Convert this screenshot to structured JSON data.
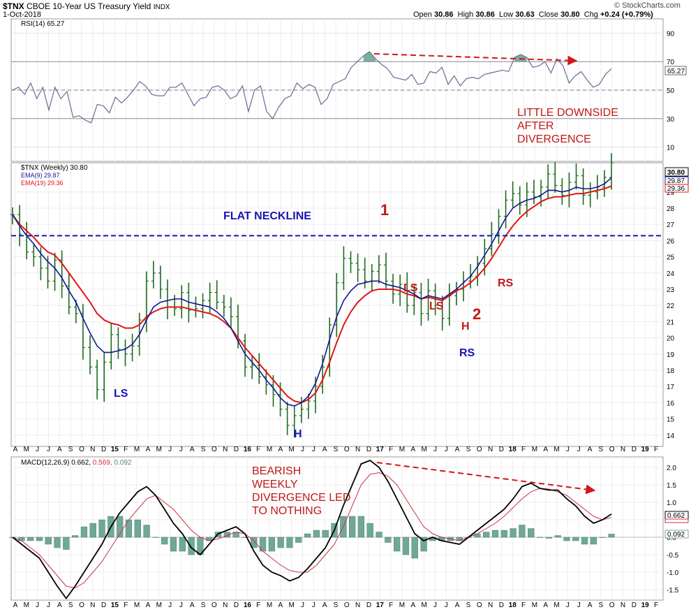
{
  "header": {
    "symbol": "$TNX",
    "name": "CBOE 10-Year US Treasury Yield",
    "exchange": "INDX",
    "date": "1-Oct-2018",
    "watermark": "© StockCharts.com",
    "open_label": "Open",
    "open": "30.86",
    "high_label": "High",
    "high": "30.86",
    "low_label": "Low",
    "low": "30.63",
    "close_label": "Close",
    "close": "30.80",
    "chg_label": "Chg",
    "chg": "+0.24 (+0.79%)"
  },
  "rsi_panel": {
    "legend": "RSI(14) 65.27",
    "value_tag": "65.27",
    "ticks": [
      90,
      70,
      50,
      30,
      10
    ],
    "annotation": "LITTLE DOWNSIDE\nAFTER\nDIVERGENCE"
  },
  "price_panel": {
    "legend_main": "$TNX (Weekly) 30.80",
    "legend_ema9": "EMA(9) 29.87",
    "legend_ema19": "EMA(19) 29.36",
    "tag_close": "30.80",
    "tag_ema9": "29.87",
    "tag_ema19": "29.36",
    "neckline_label": "FLAT NECKLINE",
    "ticks": [
      29,
      28,
      27,
      26,
      25,
      24,
      23,
      22,
      21,
      20,
      19,
      18,
      17,
      16,
      15,
      14
    ],
    "annotations": {
      "ls1": "LS",
      "h1": "H",
      "one": "1",
      "ls2": "LS",
      "ls3": "LS",
      "h2": "H",
      "two": "2",
      "rs_blue": "RS",
      "rs_red": "RS"
    }
  },
  "macd_panel": {
    "legend_name": "MACD(12,26,9)",
    "legend_macd": "0.662,",
    "legend_signal": "0.569,",
    "legend_hist": "0.092",
    "tag_macd": "0.662",
    "tag_hist": "0.092",
    "ticks": [
      "2.0",
      "1.5",
      "1.0",
      "0.5",
      "0.0",
      "-0.5",
      "-1.0",
      "-1.5"
    ],
    "annotation": "BEARISH\nWEEKLY\nDIVERGENCE LED\nTO NOTHING"
  },
  "time_axis": {
    "labels": [
      "A",
      "M",
      "J",
      "J",
      "A",
      "S",
      "O",
      "N",
      "D",
      "15",
      "F",
      "M",
      "A",
      "M",
      "J",
      "J",
      "A",
      "S",
      "O",
      "N",
      "D",
      "16",
      "F",
      "M",
      "A",
      "M",
      "J",
      "J",
      "A",
      "S",
      "O",
      "N",
      "D",
      "17",
      "F",
      "M",
      "A",
      "M",
      "J",
      "J",
      "A",
      "S",
      "O",
      "N",
      "D",
      "18",
      "F",
      "M",
      "A",
      "M",
      "J",
      "J",
      "A",
      "S",
      "O",
      "N",
      "D",
      "19",
      "F"
    ]
  },
  "colors": {
    "price_bars": "#1d6b1d",
    "ema9": "#15159a",
    "ema19": "#e01515",
    "rsi_line": "#6a6a96",
    "rsi_fill": "#5f9a86",
    "macd_line": "#000000",
    "signal_line": "#cc3344",
    "histogram": "#6fa898",
    "annotation_red": "#c01818",
    "annotation_blue": "#1515b5",
    "neckline": "#1515b5"
  },
  "chart_data": [
    {
      "type": "line",
      "title": "RSI(14)",
      "series": [
        {
          "name": "RSI(14)",
          "values": [
            50,
            52,
            47,
            55,
            44,
            52,
            36,
            52,
            44,
            49,
            31,
            32,
            29,
            27,
            40,
            39,
            34,
            45,
            41,
            45,
            50,
            56,
            53,
            47,
            46,
            46,
            52,
            52,
            55,
            47,
            39,
            44,
            45,
            52,
            53,
            50,
            44,
            46,
            53,
            35,
            50,
            53,
            35,
            30,
            38,
            44,
            46,
            55,
            51,
            54,
            52,
            40,
            44,
            54,
            56,
            58,
            66,
            70,
            74,
            77,
            72,
            68,
            65,
            59,
            58,
            57,
            61,
            54,
            55,
            63,
            62,
            66,
            54,
            60,
            53,
            58,
            59,
            58,
            61,
            62,
            63,
            64,
            63,
            73,
            75,
            73,
            66,
            67,
            70,
            62,
            72,
            67,
            55,
            60,
            63,
            57,
            52,
            54,
            61,
            65
          ]
        }
      ],
      "ylim": [
        0,
        100
      ]
    },
    {
      "type": "line",
      "title": "$TNX (Weekly)",
      "series": [
        {
          "name": "$TNX Close (weekly)",
          "values": [
            27.6,
            26.4,
            25.3,
            25.0,
            24.3,
            23.5,
            24.8,
            23.2,
            21.9,
            21.5,
            19.4,
            18.2,
            16.8,
            18.5,
            20.2,
            19.3,
            19.0,
            19.5,
            21.1,
            23.5,
            24.0,
            23.0,
            21.9,
            21.8,
            22.8,
            21.7,
            21.8,
            22.3,
            22.8,
            22.2,
            21.9,
            21.3,
            19.8,
            18.2,
            18.3,
            17.6,
            17.1,
            16.5,
            15.6,
            14.6,
            15.2,
            15.6,
            16.1,
            17.0,
            18.2,
            20.8,
            23.4,
            24.9,
            24.6,
            24.2,
            23.5,
            24.1,
            24.5,
            23.5,
            22.7,
            23.3,
            22.0,
            22.8,
            21.5,
            22.9,
            22.0,
            21.2,
            22.6,
            23.0,
            23.5,
            23.8,
            24.6,
            25.5,
            26.4,
            27.5,
            28.5,
            28.9,
            28.2,
            29.0,
            28.7,
            29.3,
            30.1,
            29.4,
            28.8,
            29.6,
            30.0,
            28.8,
            29.0,
            29.3,
            29.9,
            30.8
          ]
        },
        {
          "name": "EMA(9)",
          "values": [
            27.6,
            26.9,
            26.3,
            25.8,
            25.2,
            24.7,
            24.3,
            23.7,
            22.9,
            22.2,
            21.2,
            20.3,
            19.5,
            19.1,
            19.1,
            19.2,
            19.3,
            19.6,
            20.2,
            21.1,
            21.9,
            22.2,
            22.3,
            22.4,
            22.4,
            22.2,
            22.1,
            22.0,
            21.9,
            21.6,
            21.2,
            20.6,
            19.8,
            19.0,
            18.5,
            18.0,
            17.4,
            16.9,
            16.3,
            15.9,
            15.8,
            16.0,
            16.4,
            17.2,
            18.4,
            19.9,
            21.3,
            22.3,
            22.9,
            23.3,
            23.4,
            23.5,
            23.5,
            23.3,
            23.2,
            23.1,
            22.9,
            22.7,
            22.4,
            22.6,
            22.5,
            22.4,
            22.7,
            23.0,
            23.4,
            23.8,
            24.4,
            25.1,
            25.8,
            26.6,
            27.4,
            28.0,
            28.3,
            28.5,
            28.6,
            28.8,
            29.1,
            29.1,
            29.0,
            29.1,
            29.3,
            29.2,
            29.2,
            29.3,
            29.5,
            29.87
          ]
        },
        {
          "name": "EMA(19)",
          "values": [
            27.6,
            27.0,
            26.6,
            26.2,
            25.7,
            25.3,
            25.1,
            24.6,
            24.0,
            23.4,
            22.8,
            22.2,
            21.5,
            21.1,
            20.9,
            20.8,
            20.6,
            20.6,
            20.8,
            21.3,
            21.6,
            21.8,
            21.9,
            21.9,
            21.9,
            21.8,
            21.7,
            21.6,
            21.5,
            21.3,
            21.0,
            20.6,
            20.0,
            19.4,
            18.9,
            18.4,
            17.9,
            17.4,
            16.9,
            16.4,
            16.1,
            16.0,
            16.2,
            16.6,
            17.4,
            18.5,
            19.7,
            20.8,
            21.6,
            22.2,
            22.6,
            22.9,
            23.0,
            23.0,
            23.0,
            22.9,
            22.7,
            22.6,
            22.4,
            22.5,
            22.4,
            22.3,
            22.6,
            22.9,
            23.1,
            23.4,
            23.8,
            24.3,
            24.9,
            25.6,
            26.3,
            26.9,
            27.4,
            27.8,
            28.1,
            28.4,
            28.6,
            28.7,
            28.7,
            28.8,
            28.9,
            28.9,
            29.0,
            29.1,
            29.2,
            29.36
          ]
        },
        {
          "name": "Flat neckline",
          "values": [
            26.3
          ]
        }
      ],
      "ylim": [
        13.3,
        30.8
      ]
    },
    {
      "type": "line",
      "title": "MACD(12,26,9)",
      "series": [
        {
          "name": "MACD",
          "values": [
            0.0,
            -0.2,
            -0.4,
            -0.6,
            -1.0,
            -1.4,
            -1.75,
            -1.4,
            -1.0,
            -0.6,
            -0.2,
            0.3,
            0.7,
            1.0,
            1.3,
            1.45,
            1.2,
            0.8,
            0.4,
            0.1,
            -0.3,
            -0.5,
            -0.2,
            0.1,
            0.2,
            0.3,
            0.1,
            -0.4,
            -0.8,
            -1.0,
            -1.1,
            -1.25,
            -1.15,
            -0.9,
            -0.6,
            -0.3,
            0.2,
            0.9,
            1.5,
            2.1,
            2.2,
            2.0,
            1.6,
            1.1,
            0.6,
            0.1,
            -0.1,
            0.0,
            -0.1,
            -0.15,
            -0.2,
            0.0,
            0.2,
            0.4,
            0.6,
            0.8,
            1.1,
            1.45,
            1.55,
            1.4,
            1.35,
            1.35,
            1.1,
            0.9,
            0.6,
            0.4,
            0.5,
            0.662
          ]
        },
        {
          "name": "Signal",
          "values": [
            0.0,
            -0.1,
            -0.3,
            -0.5,
            -0.8,
            -1.1,
            -1.4,
            -1.45,
            -1.3,
            -1.0,
            -0.7,
            -0.3,
            0.1,
            0.5,
            0.8,
            1.1,
            1.2,
            1.0,
            0.8,
            0.5,
            0.2,
            0.0,
            -0.1,
            -0.05,
            0.05,
            0.15,
            0.1,
            -0.1,
            -0.4,
            -0.6,
            -0.8,
            -0.95,
            -1.0,
            -1.0,
            -0.8,
            -0.5,
            -0.2,
            0.3,
            0.9,
            1.5,
            1.8,
            1.85,
            1.75,
            1.5,
            1.1,
            0.7,
            0.3,
            0.1,
            0.0,
            -0.05,
            -0.1,
            0.0,
            0.1,
            0.25,
            0.4,
            0.6,
            0.85,
            1.1,
            1.3,
            1.4,
            1.38,
            1.3,
            1.2,
            1.0,
            0.8,
            0.6,
            0.5,
            0.569
          ]
        },
        {
          "name": "Histogram",
          "values": [
            0.0,
            -0.1,
            -0.1,
            -0.1,
            -0.2,
            -0.3,
            -0.35,
            0.05,
            0.3,
            0.4,
            0.5,
            0.6,
            0.6,
            0.5,
            0.5,
            0.35,
            0.0,
            -0.2,
            -0.4,
            -0.4,
            -0.5,
            -0.5,
            -0.1,
            0.15,
            0.15,
            0.15,
            0.0,
            -0.3,
            -0.4,
            -0.4,
            -0.3,
            -0.3,
            -0.15,
            0.1,
            0.2,
            0.2,
            0.4,
            0.6,
            0.6,
            0.6,
            0.4,
            0.15,
            -0.15,
            -0.4,
            -0.5,
            -0.6,
            -0.4,
            -0.1,
            -0.1,
            -0.1,
            -0.1,
            0.0,
            0.1,
            0.15,
            0.2,
            0.2,
            0.25,
            0.35,
            0.25,
            0.0,
            -0.03,
            0.05,
            -0.1,
            -0.1,
            -0.2,
            -0.2,
            0.0,
            0.092
          ]
        }
      ],
      "ylim": [
        -1.8,
        2.3
      ]
    }
  ]
}
